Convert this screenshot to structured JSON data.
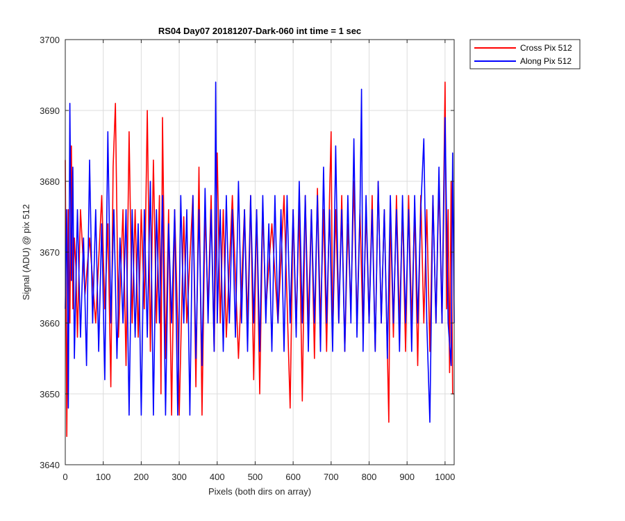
{
  "chart_data": {
    "type": "line",
    "title": "RS04 Day07 20181207-Dark-060 int time = 1 sec",
    "xlabel": "Pixels (both dirs on array)",
    "ylabel": "Signal (ADU) @ pix 512",
    "xlim": [
      0,
      1024
    ],
    "ylim": [
      3640,
      3700
    ],
    "xticks": [
      0,
      100,
      200,
      300,
      400,
      500,
      600,
      700,
      800,
      900,
      1000
    ],
    "yticks": [
      3640,
      3650,
      3660,
      3670,
      3680,
      3690,
      3700
    ],
    "grid": true,
    "legend_location": "outside-top-right",
    "colors": {
      "cross": "#ff0000",
      "along": "#0000ff",
      "grid": "#dcdcdc"
    },
    "series": [
      {
        "name": "Cross Pix 512",
        "color": "#ff0000",
        "x": [
          0,
          4,
          8,
          12,
          16,
          20,
          24,
          28,
          32,
          40,
          52,
          64,
          80,
          96,
          104,
          112,
          120,
          126,
          132,
          140,
          152,
          160,
          168,
          176,
          184,
          192,
          200,
          208,
          216,
          224,
          232,
          240,
          248,
          252,
          256,
          264,
          272,
          280,
          288,
          296,
          300,
          312,
          320,
          336,
          344,
          352,
          360,
          368,
          376,
          384,
          392,
          400,
          408,
          416,
          424,
          440,
          456,
          472,
          480,
          488,
          496,
          504,
          512,
          520,
          528,
          544,
          560,
          576,
          592,
          600,
          608,
          616,
          624,
          632,
          640,
          648,
          656,
          664,
          672,
          680,
          688,
          696,
          700,
          704,
          712,
          720,
          728,
          736,
          744,
          752,
          760,
          768,
          776,
          784,
          792,
          800,
          808,
          816,
          824,
          832,
          840,
          848,
          852,
          856,
          864,
          872,
          880,
          888,
          896,
          904,
          912,
          920,
          928,
          936,
          944,
          952,
          960,
          968,
          976,
          984,
          992,
          1000,
          1004,
          1008,
          1012,
          1016,
          1020,
          1024
        ],
        "values": [
          3683,
          3644,
          3676,
          3660,
          3685,
          3662,
          3672,
          3668,
          3658,
          3676,
          3664,
          3672,
          3660,
          3678,
          3662,
          3674,
          3651,
          3682,
          3691,
          3658,
          3676,
          3654,
          3687,
          3660,
          3676,
          3658,
          3676,
          3662,
          3690,
          3656,
          3683,
          3660,
          3678,
          3650,
          3689,
          3655,
          3676,
          3647,
          3676,
          3660,
          3647,
          3675,
          3660,
          3678,
          3651,
          3682,
          3647,
          3676,
          3662,
          3678,
          3656,
          3684,
          3660,
          3676,
          3658,
          3678,
          3655,
          3676,
          3660,
          3678,
          3652,
          3676,
          3650,
          3676,
          3662,
          3674,
          3660,
          3678,
          3648,
          3676,
          3660,
          3676,
          3649,
          3678,
          3660,
          3676,
          3655,
          3679,
          3660,
          3676,
          3656,
          3678,
          3687,
          3658,
          3676,
          3660,
          3678,
          3656,
          3674,
          3662,
          3680,
          3660,
          3676,
          3658,
          3676,
          3660,
          3678,
          3656,
          3680,
          3660,
          3676,
          3656,
          3646,
          3676,
          3658,
          3678,
          3660,
          3676,
          3656,
          3678,
          3660,
          3676,
          3654,
          3678,
          3660,
          3676,
          3656,
          3678,
          3660,
          3680,
          3660,
          3694,
          3662,
          3676,
          3653,
          3680,
          3650,
          3650
        ]
      },
      {
        "name": "Along Pix 512",
        "color": "#0000ff",
        "x": [
          0,
          4,
          8,
          12,
          16,
          20,
          24,
          32,
          40,
          48,
          56,
          64,
          72,
          80,
          88,
          96,
          104,
          112,
          120,
          128,
          136,
          144,
          152,
          160,
          168,
          176,
          184,
          192,
          200,
          208,
          216,
          224,
          232,
          240,
          248,
          256,
          264,
          272,
          280,
          288,
          296,
          304,
          312,
          320,
          328,
          336,
          344,
          352,
          360,
          368,
          376,
          384,
          392,
          396,
          400,
          408,
          416,
          424,
          432,
          440,
          448,
          456,
          464,
          472,
          480,
          488,
          496,
          504,
          512,
          520,
          528,
          536,
          544,
          552,
          560,
          568,
          576,
          584,
          592,
          600,
          608,
          616,
          624,
          632,
          640,
          648,
          656,
          664,
          672,
          680,
          688,
          696,
          704,
          712,
          720,
          728,
          736,
          744,
          752,
          760,
          768,
          776,
          780,
          784,
          792,
          800,
          808,
          816,
          824,
          832,
          840,
          848,
          856,
          864,
          872,
          880,
          888,
          896,
          904,
          912,
          920,
          928,
          936,
          944,
          952,
          960,
          968,
          976,
          984,
          992,
          1000,
          1008,
          1016,
          1020,
          1024
        ],
        "values": [
          3662,
          3676,
          3648,
          3691,
          3666,
          3682,
          3655,
          3676,
          3658,
          3672,
          3654,
          3683,
          3660,
          3676,
          3656,
          3674,
          3652,
          3687,
          3660,
          3676,
          3655,
          3672,
          3660,
          3676,
          3647,
          3676,
          3658,
          3674,
          3647,
          3676,
          3658,
          3680,
          3647,
          3676,
          3660,
          3678,
          3647,
          3674,
          3660,
          3676,
          3647,
          3678,
          3660,
          3676,
          3647,
          3678,
          3655,
          3676,
          3654,
          3679,
          3660,
          3676,
          3656,
          3694,
          3660,
          3676,
          3656,
          3678,
          3660,
          3676,
          3658,
          3680,
          3660,
          3676,
          3656,
          3678,
          3660,
          3676,
          3656,
          3678,
          3660,
          3674,
          3656,
          3678,
          3660,
          3676,
          3656,
          3678,
          3660,
          3676,
          3658,
          3680,
          3660,
          3678,
          3656,
          3676,
          3660,
          3678,
          3656,
          3682,
          3660,
          3676,
          3656,
          3685,
          3660,
          3676,
          3656,
          3678,
          3660,
          3686,
          3658,
          3676,
          3693,
          3656,
          3678,
          3660,
          3676,
          3656,
          3680,
          3660,
          3676,
          3655,
          3678,
          3660,
          3676,
          3656,
          3678,
          3660,
          3676,
          3656,
          3678,
          3660,
          3676,
          3686,
          3660,
          3646,
          3678,
          3660,
          3682,
          3660,
          3689,
          3660,
          3654,
          3684,
          3660
        ]
      }
    ]
  }
}
